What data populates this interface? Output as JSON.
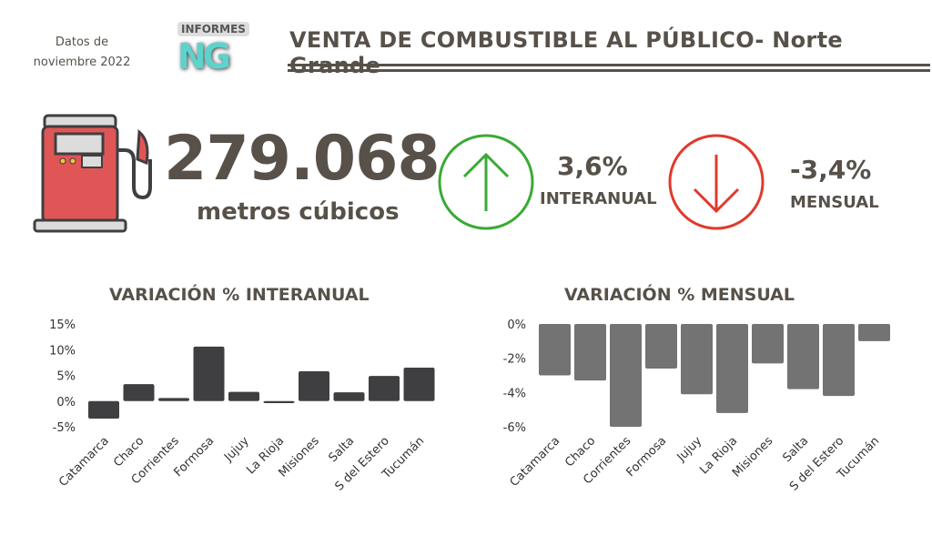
{
  "header": {
    "date_line1": "Datos de",
    "date_line2": "noviembre 2022",
    "logo_text": "INFORMES",
    "logo_mark": "NG",
    "title": "VENTA DE COMBUSTIBLE AL PÚBLICO- Norte Grande"
  },
  "kpi": {
    "volume": "279.068",
    "unit": "metros cúbicos",
    "interanual_value": "3,6%",
    "interanual_label": "INTERANUAL",
    "mensual_value": "-3,4%",
    "mensual_label": "MENSUAL",
    "up_color": "#3aaa35",
    "down_color": "#e03a2c"
  },
  "chart_data": [
    {
      "type": "bar",
      "title": "VARIACIÓN % INTERANUAL",
      "categories": [
        "Catamarca",
        "Chaco",
        "Corrientes",
        "Formosa",
        "Jujuy",
        "La Rioja",
        "Misiones",
        "Salta",
        "S del Estero",
        "Tucumán"
      ],
      "values": [
        -3.4,
        3.3,
        0.6,
        10.6,
        1.8,
        -0.4,
        5.8,
        1.7,
        4.9,
        6.5
      ],
      "ylim": [
        -5,
        15
      ],
      "yticks": [
        "-5%",
        "0%",
        "5%",
        "10%",
        "15%"
      ],
      "ytick_values": [
        -5,
        0,
        5,
        10,
        15
      ],
      "color": "#3f3e40"
    },
    {
      "type": "bar",
      "title": "VARIACIÓN % MENSUAL",
      "categories": [
        "Catamarca",
        "Chaco",
        "Corrientes",
        "Formosa",
        "Jujuy",
        "La Rioja",
        "Misiones",
        "Salta",
        "S del Estero",
        "Tucumán"
      ],
      "values": [
        -3.0,
        -3.3,
        -6.0,
        -2.6,
        -4.1,
        -5.2,
        -2.3,
        -3.8,
        -4.2,
        -1.0
      ],
      "ylim": [
        -6,
        0
      ],
      "yticks": [
        "-6%",
        "-4%",
        "-2%",
        "0%"
      ],
      "ytick_values": [
        -6,
        -4,
        -2,
        0
      ],
      "color": "#737373"
    }
  ]
}
